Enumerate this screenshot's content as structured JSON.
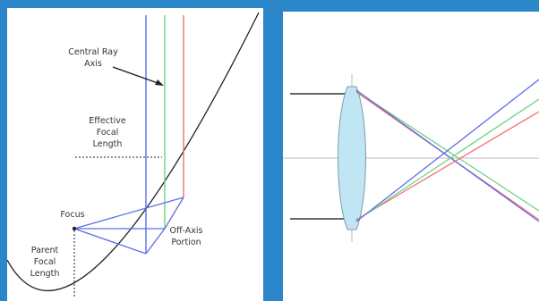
{
  "left_diagram": {
    "labels": {
      "central_ray_line1": "Central Ray",
      "central_ray_line2": "Axis",
      "efl_line1": "Effective",
      "efl_line2": "Focal",
      "efl_line3": "Length",
      "focus": "Focus",
      "off_axis_line1": "Off-Axis",
      "off_axis_line2": "Portion",
      "parent_line1": "Parent",
      "parent_line2": "Focal",
      "parent_line3": "Length"
    }
  },
  "right_diagram": {},
  "colors": {
    "background": "#2b86c9",
    "panel": "#ffffff",
    "blue_ray": "#5b6ee8",
    "green_ray": "#6fd37f",
    "red_ray": "#f07070",
    "lens_fill": "#bfe6f2",
    "lens_edge": "#7a9db0",
    "mirror_curve": "#222222",
    "axis_gray": "#bbbbbb"
  }
}
